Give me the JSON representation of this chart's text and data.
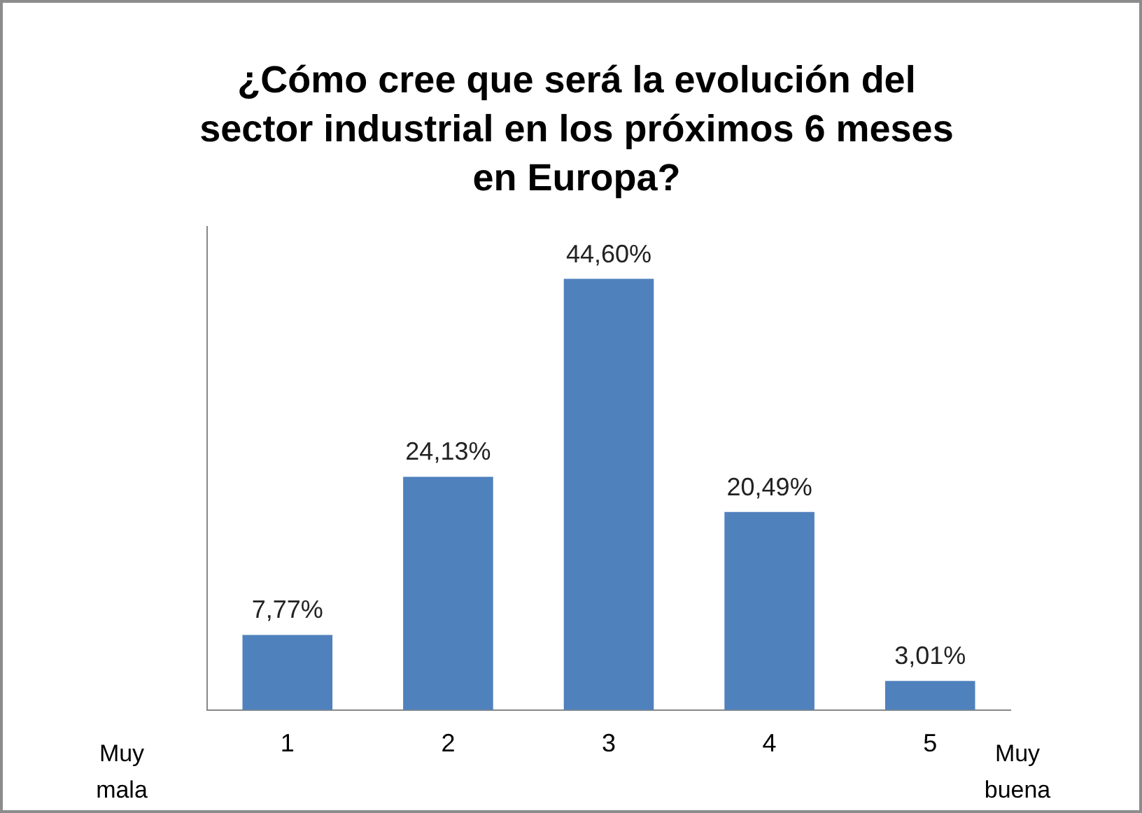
{
  "chart_data": {
    "type": "bar",
    "title": "¿Cómo cree que será la evolución del sector industrial en los próximos 6 meses en Europa?",
    "categories": [
      "1",
      "2",
      "3",
      "4",
      "5"
    ],
    "values": [
      7.77,
      24.13,
      44.6,
      20.49,
      3.01
    ],
    "value_labels": [
      "7,77%",
      "24,13%",
      "44,60%",
      "20,49%",
      "3,01%"
    ],
    "color": "#4f81bd",
    "annotations": [
      "Muy mala",
      "Muy buena"
    ],
    "grid": false,
    "legend": false
  }
}
